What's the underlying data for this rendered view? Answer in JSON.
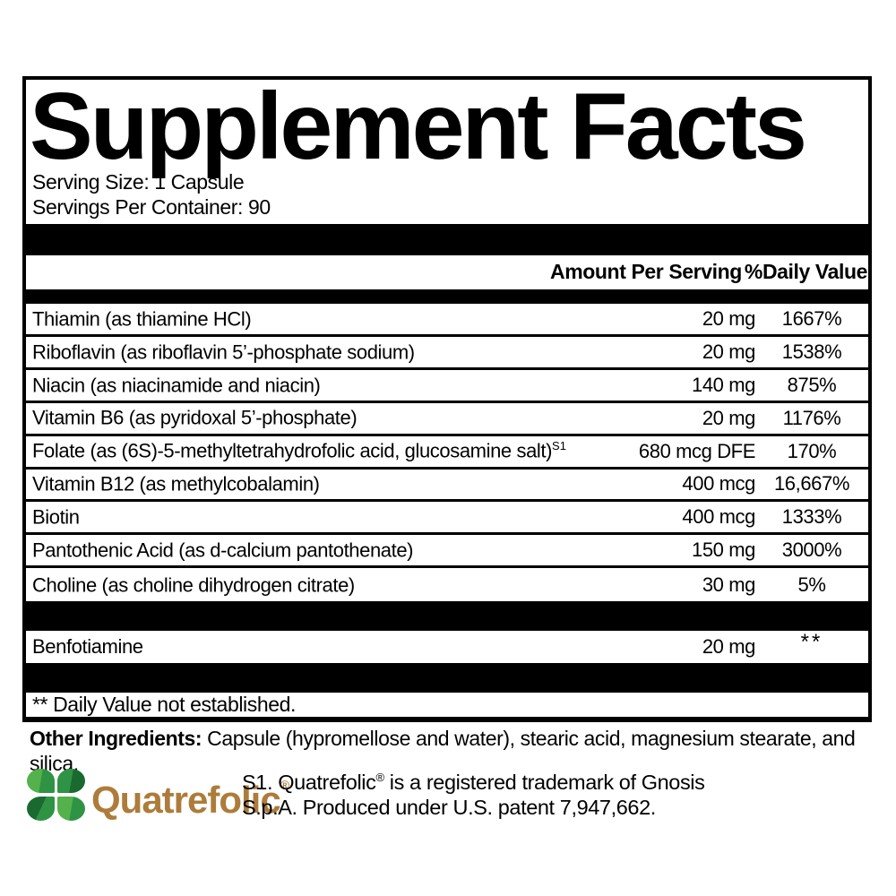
{
  "label": {
    "title": "Supplement Facts",
    "serving_size": "Serving Size: 1 Capsule",
    "servings_per_container": "Servings Per Container: 90",
    "header": {
      "amount": "Amount Per Serving",
      "dv": "%Daily Value"
    },
    "rows": [
      {
        "name": "Thiamin (as thiamine HCl)",
        "amount": "20 mg",
        "dv": "1667%"
      },
      {
        "name": "Riboflavin (as riboflavin 5’-phosphate sodium)",
        "amount": "20 mg",
        "dv": "1538%"
      },
      {
        "name": "Niacin (as niacinamide and niacin)",
        "amount": "140 mg",
        "dv": "875%"
      },
      {
        "name": "Vitamin B6 (as pyridoxal 5’-phosphate)",
        "amount": "20 mg",
        "dv": "1176%"
      },
      {
        "name": "Folate (as (6S)-5-methyltetrahydrofolic acid, glucosamine salt)",
        "name_sup": "S1",
        "amount": "680 mcg DFE",
        "dv": "170%"
      },
      {
        "name": "Vitamin B12 (as methylcobalamin)",
        "amount": "400 mcg",
        "dv": "16,667%"
      },
      {
        "name": "Biotin",
        "amount": "400 mcg",
        "dv": "1333%"
      },
      {
        "name": "Pantothenic Acid (as d-calcium pantothenate)",
        "amount": "150 mg",
        "dv": "3000%"
      },
      {
        "name": "Choline (as choline dihydrogen citrate)",
        "amount": "30 mg",
        "dv": "5%"
      }
    ],
    "extra_row": {
      "name": "Benfotiamine",
      "amount": "20 mg",
      "dv": "**"
    },
    "footnote": "** Daily Value not established.",
    "other_ingredients_label": "Other Ingredients:",
    "other_ingredients_text": " Capsule (hypromellose and water), stearic acid, magnesium stearate, and silica."
  },
  "quatrefolic": {
    "wordmark": "Quatrefolic",
    "reg_mark": "®",
    "note_line1_pre": "S1. Quatrefolic",
    "note_line1_sup": "®",
    "note_line1_post": " is a registered trademark of Gnosis",
    "note_line2": "S.p.A. Produced under U.S. patent 7,947,662.",
    "colors": {
      "wordmark": "#ad7c3b",
      "leaf_light": "#55b14b",
      "leaf_mid": "#2e9444",
      "leaf_dark": "#1a6a30"
    }
  }
}
